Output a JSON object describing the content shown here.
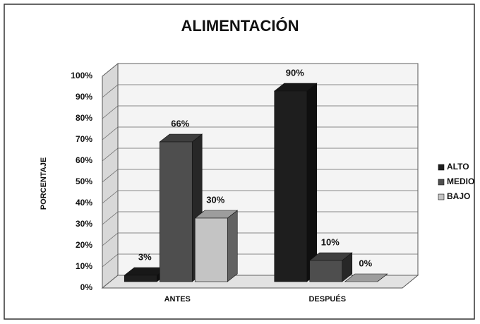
{
  "chart_data": {
    "type": "bar3d",
    "title": "ALIMENTACIÓN",
    "y_label": "PORCENTAJE",
    "categories": [
      "ANTES",
      "DESPUÉS"
    ],
    "series": [
      {
        "name": "ALTO",
        "color": "#1e1e1e",
        "values": [
          3,
          90
        ],
        "value_labels": [
          "3%",
          "90%"
        ]
      },
      {
        "name": "MEDIO",
        "color": "#4e4e4e",
        "values": [
          66,
          10
        ],
        "value_labels": [
          "66%",
          "10%"
        ]
      },
      {
        "name": "BAJO",
        "color": "#c4c4c4",
        "values": [
          30,
          0
        ],
        "value_labels": [
          "30%",
          "0%"
        ]
      }
    ],
    "ylim": [
      0,
      100
    ],
    "yticks": [
      {
        "value": 0,
        "label": "0%"
      },
      {
        "value": 10,
        "label": "10%"
      },
      {
        "value": 20,
        "label": "20%"
      },
      {
        "value": 30,
        "label": "30%"
      },
      {
        "value": 40,
        "label": "40%"
      },
      {
        "value": 50,
        "label": "50%"
      },
      {
        "value": 60,
        "label": "60%"
      },
      {
        "value": 70,
        "label": "70%"
      },
      {
        "value": 80,
        "label": "80%"
      },
      {
        "value": 90,
        "label": "90%"
      },
      {
        "value": 100,
        "label": "100%"
      }
    ],
    "grid": true,
    "legend": "right"
  }
}
